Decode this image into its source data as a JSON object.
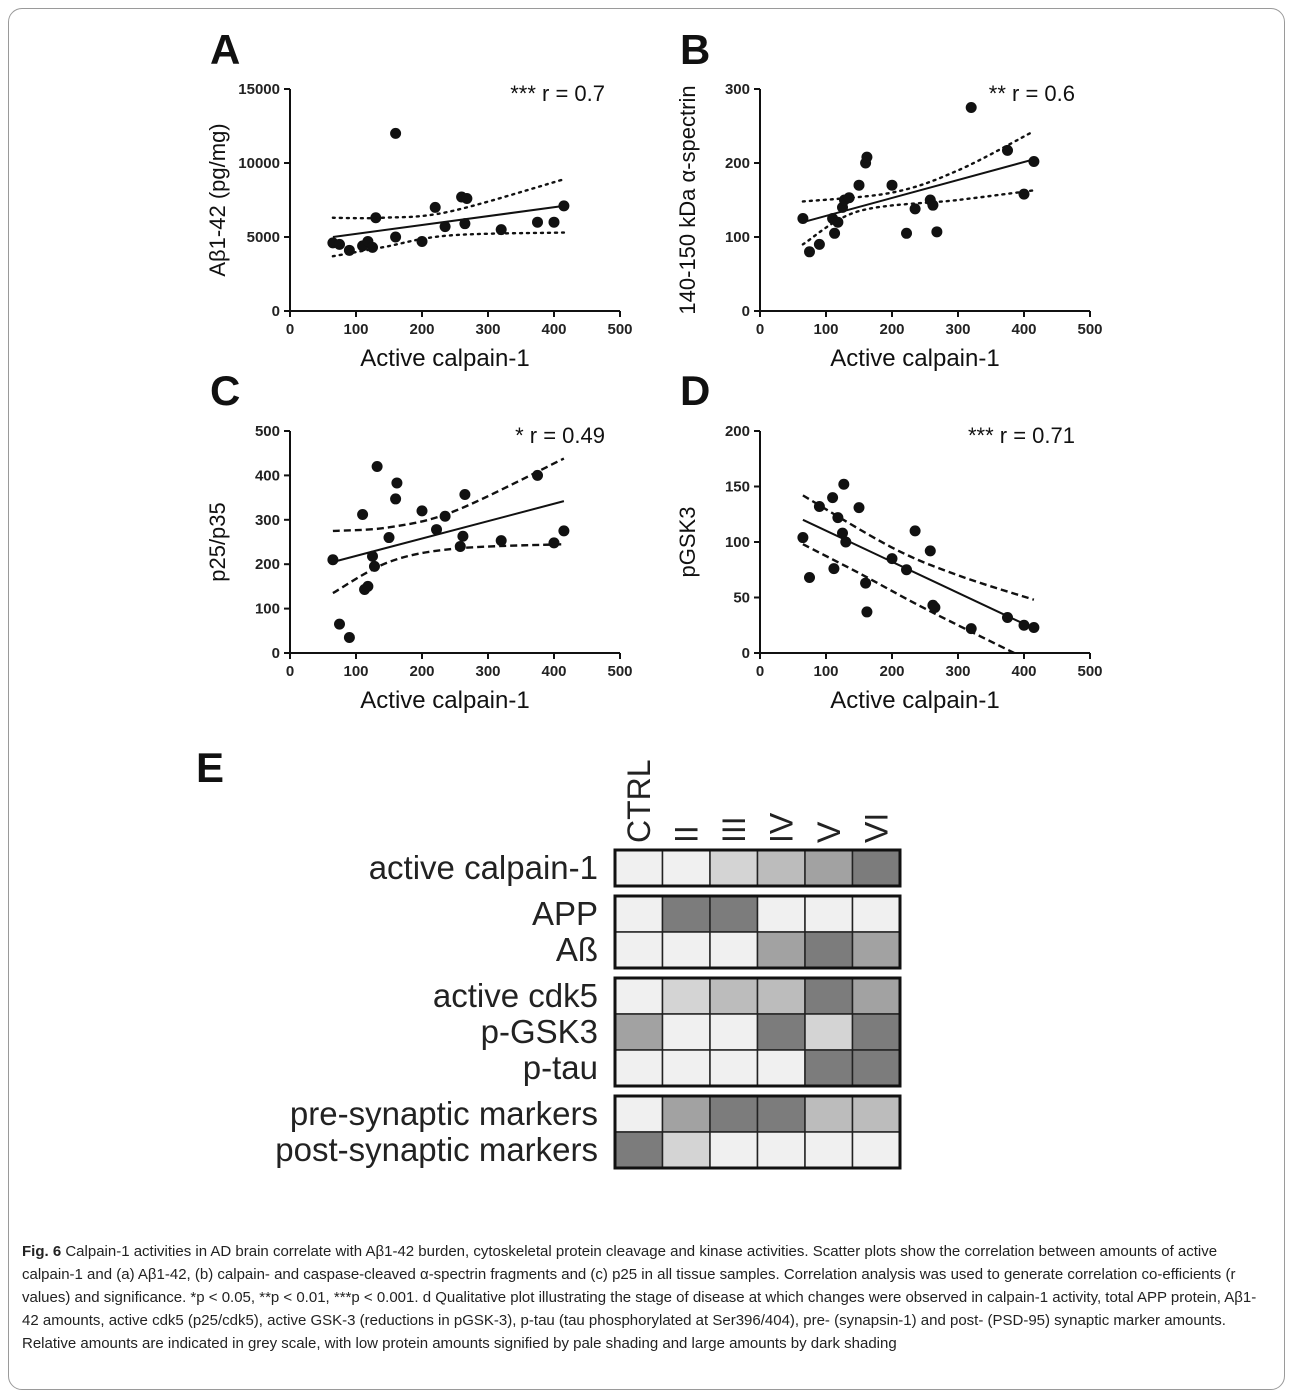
{
  "chart_data": [
    {
      "type": "scatter",
      "panel": "A",
      "ylabel": "Aβ1-42 (pg/mg)",
      "xlabel": "Active calpain-1",
      "annotation": "*** r = 0.7",
      "xlim": [
        0,
        500
      ],
      "ylim": [
        0,
        15000
      ],
      "xticks": [
        0,
        100,
        200,
        300,
        400,
        500
      ],
      "yticks": [
        0,
        5000,
        10000,
        15000
      ],
      "points": [
        [
          65,
          4600
        ],
        [
          75,
          4500
        ],
        [
          90,
          4100
        ],
        [
          110,
          4400
        ],
        [
          118,
          4700
        ],
        [
          125,
          4300
        ],
        [
          130,
          6300
        ],
        [
          160,
          12000
        ],
        [
          160,
          5000
        ],
        [
          200,
          4700
        ],
        [
          220,
          7000
        ],
        [
          235,
          5700
        ],
        [
          260,
          7700
        ],
        [
          265,
          5900
        ],
        [
          268,
          7600
        ],
        [
          320,
          5500
        ],
        [
          375,
          6000
        ],
        [
          400,
          6000
        ],
        [
          415,
          7100
        ]
      ],
      "fit_line": [
        [
          65,
          5000
        ],
        [
          415,
          7100
        ]
      ],
      "ci_upper": [
        [
          65,
          6300
        ],
        [
          140,
          6300
        ],
        [
          240,
          6700
        ],
        [
          415,
          8900
        ]
      ],
      "ci_lower": [
        [
          65,
          3700
        ],
        [
          140,
          4300
        ],
        [
          240,
          5100
        ],
        [
          415,
          5300
        ]
      ]
    },
    {
      "type": "scatter",
      "panel": "B",
      "ylabel": "140-150 kDa α-spectrin",
      "xlabel": "Active calpain-1",
      "annotation": "** r = 0.6",
      "xlim": [
        0,
        500
      ],
      "ylim": [
        0,
        300
      ],
      "xticks": [
        0,
        100,
        200,
        300,
        400,
        500
      ],
      "yticks": [
        0,
        100,
        200,
        300
      ],
      "points": [
        [
          65,
          125
        ],
        [
          75,
          80
        ],
        [
          90,
          90
        ],
        [
          110,
          125
        ],
        [
          113,
          105
        ],
        [
          118,
          120
        ],
        [
          125,
          140
        ],
        [
          128,
          150
        ],
        [
          135,
          153
        ],
        [
          150,
          170
        ],
        [
          160,
          200
        ],
        [
          162,
          208
        ],
        [
          200,
          170
        ],
        [
          222,
          105
        ],
        [
          235,
          138
        ],
        [
          258,
          150
        ],
        [
          262,
          143
        ],
        [
          268,
          107
        ],
        [
          320,
          275
        ],
        [
          375,
          217
        ],
        [
          400,
          158
        ],
        [
          415,
          202
        ]
      ],
      "fit_line": [
        [
          65,
          120
        ],
        [
          415,
          205
        ]
      ],
      "ci_upper": [
        [
          65,
          148
        ],
        [
          200,
          160
        ],
        [
          300,
          190
        ],
        [
          415,
          243
        ]
      ],
      "ci_lower": [
        [
          65,
          90
        ],
        [
          150,
          135
        ],
        [
          300,
          150
        ],
        [
          415,
          163
        ]
      ]
    },
    {
      "type": "scatter",
      "panel": "C",
      "ylabel": "p25/p35",
      "xlabel": "Active calpain-1",
      "annotation": "* r = 0.49",
      "xlim": [
        0,
        500
      ],
      "ylim": [
        0,
        500
      ],
      "xticks": [
        0,
        100,
        200,
        300,
        400,
        500
      ],
      "yticks": [
        0,
        100,
        200,
        300,
        400,
        500
      ],
      "points": [
        [
          65,
          210
        ],
        [
          75,
          65
        ],
        [
          90,
          35
        ],
        [
          110,
          312
        ],
        [
          113,
          143
        ],
        [
          118,
          150
        ],
        [
          125,
          218
        ],
        [
          128,
          195
        ],
        [
          132,
          420
        ],
        [
          150,
          260
        ],
        [
          160,
          347
        ],
        [
          162,
          383
        ],
        [
          200,
          320
        ],
        [
          222,
          278
        ],
        [
          235,
          308
        ],
        [
          258,
          240
        ],
        [
          262,
          263
        ],
        [
          265,
          357
        ],
        [
          320,
          253
        ],
        [
          375,
          400
        ],
        [
          400,
          248
        ],
        [
          415,
          275
        ]
      ],
      "fit_line": [
        [
          65,
          205
        ],
        [
          415,
          342
        ]
      ],
      "ci_upper": [
        [
          65,
          275
        ],
        [
          150,
          283
        ],
        [
          250,
          320
        ],
        [
          415,
          438
        ]
      ],
      "ci_lower": [
        [
          65,
          135
        ],
        [
          150,
          205
        ],
        [
          250,
          235
        ],
        [
          415,
          245
        ]
      ]
    },
    {
      "type": "scatter",
      "panel": "D",
      "ylabel": "pGSK3",
      "xlabel": "Active calpain-1",
      "annotation": "*** r = 0.71",
      "xlim": [
        0,
        500
      ],
      "ylim": [
        0,
        200
      ],
      "xticks": [
        0,
        100,
        200,
        300,
        400,
        500
      ],
      "yticks": [
        0,
        50,
        100,
        150,
        200
      ],
      "points": [
        [
          65,
          104
        ],
        [
          75,
          68
        ],
        [
          90,
          132
        ],
        [
          110,
          140
        ],
        [
          112,
          76
        ],
        [
          118,
          122
        ],
        [
          125,
          108
        ],
        [
          127,
          152
        ],
        [
          130,
          100
        ],
        [
          150,
          131
        ],
        [
          160,
          63
        ],
        [
          162,
          37
        ],
        [
          200,
          85
        ],
        [
          222,
          75
        ],
        [
          235,
          110
        ],
        [
          258,
          92
        ],
        [
          262,
          43
        ],
        [
          265,
          41
        ],
        [
          320,
          22
        ],
        [
          375,
          32
        ],
        [
          400,
          25
        ],
        [
          415,
          23
        ]
      ],
      "fit_line": [
        [
          65,
          120
        ],
        [
          415,
          22
        ]
      ],
      "ci_upper": [
        [
          65,
          142
        ],
        [
          200,
          95
        ],
        [
          300,
          70
        ],
        [
          415,
          48
        ]
      ],
      "ci_lower": [
        [
          65,
          98
        ],
        [
          150,
          72
        ],
        [
          250,
          40
        ],
        [
          385,
          0
        ]
      ]
    },
    {
      "type": "heatmap",
      "panel": "E",
      "columns": [
        "CTRL",
        "II",
        "III",
        "IV",
        "V",
        "VI"
      ],
      "row_groups": [
        [
          {
            "label": "active calpain-1",
            "values": [
              0,
              0,
              1,
              2,
              3,
              4
            ]
          }
        ],
        [
          {
            "label": "APP",
            "values": [
              0,
              4,
              4,
              0,
              0,
              0
            ]
          },
          {
            "label": "Aß",
            "values": [
              0,
              0,
              0,
              3,
              4,
              3
            ]
          }
        ],
        [
          {
            "label": "active cdk5",
            "values": [
              0,
              1,
              2,
              2,
              4,
              3
            ]
          },
          {
            "label": "p-GSK3",
            "values": [
              3,
              0,
              0,
              4,
              1,
              4
            ]
          },
          {
            "label": "p-tau",
            "values": [
              0,
              0,
              0,
              0,
              4,
              4
            ]
          }
        ],
        [
          {
            "label": "pre-synaptic markers",
            "values": [
              0,
              3,
              4,
              4,
              2,
              2
            ]
          },
          {
            "label": "post-synaptic markers",
            "values": [
              4,
              1,
              0,
              0,
              0,
              0
            ]
          }
        ]
      ],
      "shade_colors": [
        "#f0f0f0",
        "#d4d4d4",
        "#bcbcbc",
        "#a2a2a2",
        "#7c7c7c"
      ]
    }
  ],
  "caption": {
    "lead": "Fig. 6",
    "text": "Calpain-1 activities in AD brain correlate with Aβ1-42 burden, cytoskeletal protein cleavage and kinase activities. Scatter plots show the correlation between amounts of active calpain-1 and (a) Aβ1-42, (b) calpain- and caspase-cleaved α-spectrin fragments and (c) p25 in all tissue samples. Correlation analysis was used to generate correlation co-efficients (r values) and significance. *p < 0.05, **p < 0.01, ***p < 0.001. d Qualitative plot illustrating the stage of disease at which changes were observed in calpain-1 activity, total APP protein, Aβ1-42 amounts, active cdk5 (p25/cdk5), active GSK-3 (reductions in pGSK-3), p-tau (tau phosphorylated at Ser396/404), pre- (synapsin-1) and post- (PSD-95) synaptic marker amounts. Relative amounts are indicated in grey scale, with low protein amounts signified by pale shading and large amounts by dark shading"
  }
}
